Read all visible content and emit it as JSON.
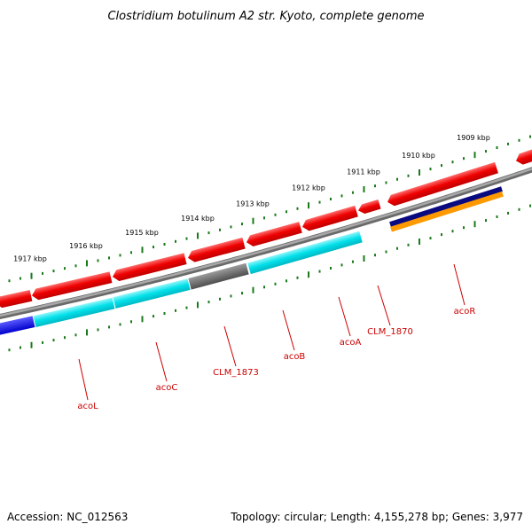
{
  "title": "Clostridium botulinum A2 str. Kyoto, complete genome",
  "accession": "Accession: NC_012563",
  "topology": "Topology: circular; Length: 4,155,278 bp; Genes: 3,977",
  "colors": {
    "backbone": "#8a8a8a",
    "tick": "#1a7a1a",
    "gene_red": "#ee0000",
    "gene_cyan": "#00d8e0",
    "gene_gray": "#6a6a6a",
    "gene_blue": "#1010ee",
    "gene_navy": "#0a0a80",
    "gene_orange": "#ff9900",
    "label": "#cc0000"
  },
  "ticks": [
    {
      "label": "1909 kbp"
    },
    {
      "label": "1910 kbp"
    },
    {
      "label": "1911 kbp"
    },
    {
      "label": "1912 kbp"
    },
    {
      "label": "1913 kbp"
    },
    {
      "label": "1914 kbp"
    },
    {
      "label": "1915 kbp"
    },
    {
      "label": "1916 kbp"
    },
    {
      "label": "1917 kbp"
    }
  ],
  "gene_labels": [
    {
      "name": "acoR"
    },
    {
      "name": "CLM_1870"
    },
    {
      "name": "acoA"
    },
    {
      "name": "acoB"
    },
    {
      "name": "CLM_1873"
    },
    {
      "name": "acoC"
    },
    {
      "name": "acoL"
    }
  ]
}
